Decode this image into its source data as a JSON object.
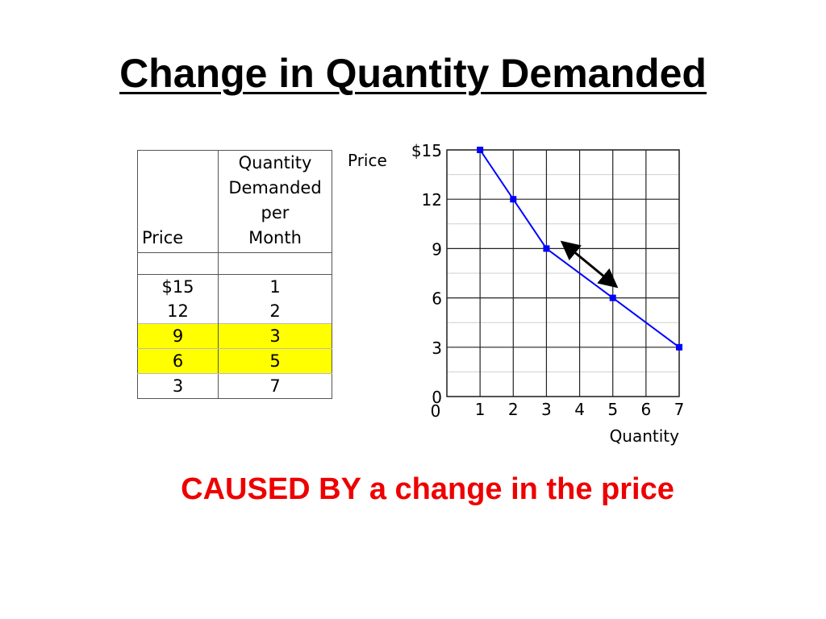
{
  "slide": {
    "title": "Change in Quantity Demanded",
    "caption": "CAUSED BY a change in the price"
  },
  "table": {
    "headers": {
      "price": "Price",
      "quantity_lines": [
        "Quantity",
        "Demanded",
        "per",
        "Month"
      ]
    },
    "rows": [
      {
        "price": "$15",
        "quantity": "1",
        "highlight": false
      },
      {
        "price": "12",
        "quantity": "2",
        "highlight": false
      },
      {
        "price": "9",
        "quantity": "3",
        "highlight": true
      },
      {
        "price": "6",
        "quantity": "5",
        "highlight": true
      },
      {
        "price": "3",
        "quantity": "7",
        "highlight": false
      }
    ],
    "highlight_color": "#ffff00"
  },
  "chart_data": {
    "type": "line",
    "x": [
      1,
      2,
      3,
      5,
      7
    ],
    "y": [
      15,
      12,
      9,
      6,
      3
    ],
    "xlabel": "Quantity",
    "ylabel": "Price",
    "xlim": [
      0,
      7
    ],
    "ylim": [
      0,
      15
    ],
    "x_tick_labels": [
      "1",
      "2",
      "3",
      "4",
      "5",
      "6",
      "7"
    ],
    "y_tick_labels": [
      "0",
      "3",
      "6",
      "9",
      "12",
      "$15"
    ],
    "y_tick_values": [
      0,
      3,
      6,
      9,
      12,
      15
    ],
    "grid": true,
    "line_color": "#0000ff",
    "marker_color": "#0000ff",
    "arrow": {
      "from": [
        3,
        9
      ],
      "to": [
        5,
        6
      ],
      "color": "#000000",
      "style": "double-headed"
    }
  }
}
